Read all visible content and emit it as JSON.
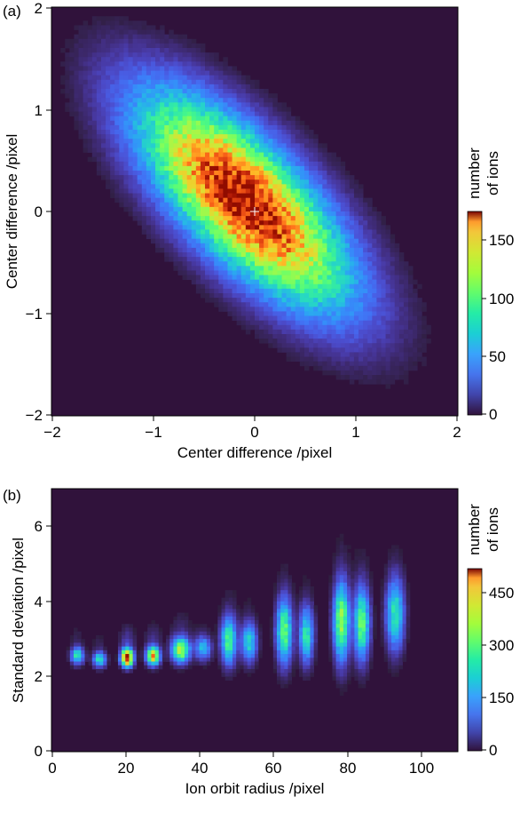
{
  "chart_data": [
    {
      "type": "heatmap",
      "panel_label": "(a)",
      "xlabel": "Center difference /pixel",
      "ylabel": "Center difference /pixel",
      "xlim": [
        -2,
        2
      ],
      "ylim": [
        -2,
        2
      ],
      "xticks": [
        -2,
        -1,
        0,
        1,
        2
      ],
      "yticks": [
        -2,
        -1,
        0,
        1,
        2
      ],
      "xtick_labels": [
        "−2",
        "−1",
        "0",
        "1",
        "2"
      ],
      "ytick_labels": [
        "−2",
        "−1",
        "0",
        "1",
        "2"
      ],
      "colorbar": {
        "label_lines": [
          "number",
          "of ions"
        ],
        "range": [
          0,
          175
        ],
        "ticks": [
          0,
          50,
          100,
          150
        ],
        "tick_labels": [
          "0",
          "50",
          "100",
          "150"
        ],
        "colormap": "turbo"
      },
      "distribution": {
        "shape": "tilted 2D Gaussian, negative correlation",
        "center": [
          -0.1,
          0.1
        ],
        "peak_count": 170,
        "sigma_x": 0.62,
        "sigma_y": 0.62,
        "correlation": -0.72,
        "background": 0,
        "bins": 90
      },
      "annotations": [
        {
          "type": "cross",
          "x": 0,
          "y": 0,
          "color": "#ffffff"
        }
      ]
    },
    {
      "type": "heatmap",
      "panel_label": "(b)",
      "xlabel": "Ion orbit radius /pixel",
      "ylabel": "Standard deviation /pixel",
      "xlim": [
        0,
        110
      ],
      "ylim": [
        0,
        7
      ],
      "xticks": [
        0,
        20,
        40,
        60,
        80,
        100
      ],
      "yticks": [
        0,
        2,
        4,
        6
      ],
      "xtick_labels": [
        "0",
        "20",
        "40",
        "60",
        "80",
        "100"
      ],
      "ytick_labels": [
        "0",
        "2",
        "4",
        "6"
      ],
      "colorbar": {
        "label_lines": [
          "number",
          "of ions"
        ],
        "range": [
          0,
          520
        ],
        "ticks": [
          0,
          150,
          300,
          450
        ],
        "tick_labels": [
          "0",
          "150",
          "300",
          "450"
        ],
        "colormap": "turbo"
      },
      "clusters": [
        {
          "x": 7,
          "y": 2.55,
          "peak": 170,
          "sx": 1.1,
          "sy": 0.14
        },
        {
          "x": 13,
          "y": 2.45,
          "peak": 160,
          "sx": 1.1,
          "sy": 0.13
        },
        {
          "x": 20.5,
          "y": 2.5,
          "peak": 510,
          "sx": 1.0,
          "sy": 0.14
        },
        {
          "x": 27.5,
          "y": 2.55,
          "peak": 360,
          "sx": 1.1,
          "sy": 0.15
        },
        {
          "x": 35,
          "y": 2.7,
          "peak": 280,
          "sx": 1.5,
          "sy": 0.2
        },
        {
          "x": 41,
          "y": 2.75,
          "peak": 120,
          "sx": 1.4,
          "sy": 0.2
        },
        {
          "x": 48,
          "y": 2.95,
          "peak": 200,
          "sx": 1.3,
          "sy": 0.38
        },
        {
          "x": 53.5,
          "y": 2.9,
          "peak": 150,
          "sx": 1.3,
          "sy": 0.32
        },
        {
          "x": 63,
          "y": 3.2,
          "peak": 215,
          "sx": 1.3,
          "sy": 0.52
        },
        {
          "x": 69,
          "y": 3.1,
          "peak": 170,
          "sx": 1.2,
          "sy": 0.45
        },
        {
          "x": 78.5,
          "y": 3.45,
          "peak": 255,
          "sx": 1.3,
          "sy": 0.62
        },
        {
          "x": 84,
          "y": 3.4,
          "peak": 210,
          "sx": 1.3,
          "sy": 0.58
        },
        {
          "x": 93,
          "y": 3.65,
          "peak": 170,
          "sx": 1.5,
          "sy": 0.58
        }
      ]
    }
  ]
}
